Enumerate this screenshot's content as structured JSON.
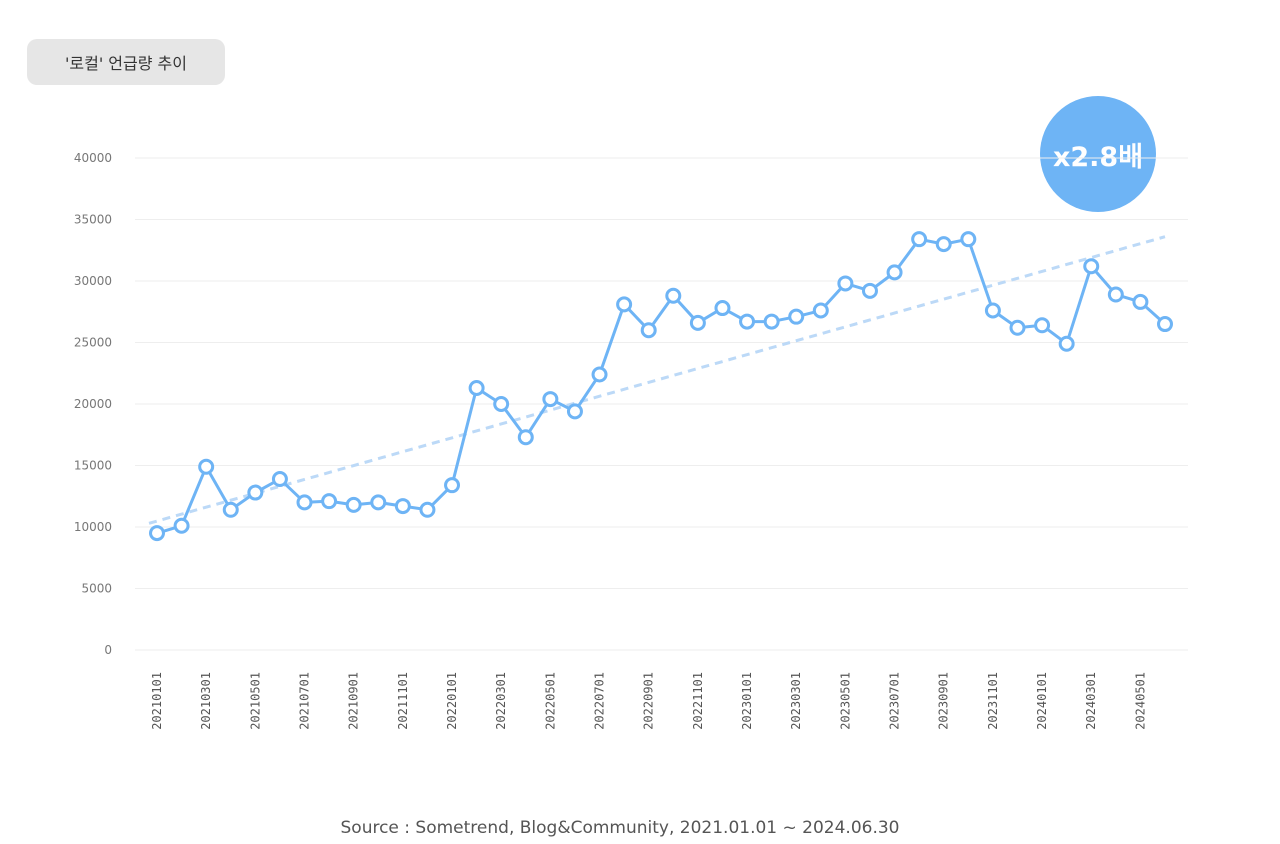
{
  "title": "'로컬' 언급량 추이",
  "multiplier": "x2.8배",
  "source": "Source : Sometrend, Blog&Community, 2021.01.01 ~ 2024.06.30",
  "colors": {
    "line": "#6eb4f5",
    "trend": "#bcd9f7",
    "grid": "#eeeeee",
    "badge": "#6eb4f5"
  },
  "chart_data": {
    "type": "line",
    "ylim": [
      0,
      40000
    ],
    "yticks": [
      0,
      5000,
      10000,
      15000,
      20000,
      25000,
      30000,
      35000,
      40000
    ],
    "x_tick_labels": [
      "20210101",
      "20210301",
      "20210501",
      "20210701",
      "20210901",
      "20211101",
      "20220101",
      "20220301",
      "20220501",
      "20220701",
      "20220901",
      "20221101",
      "20230101",
      "20230301",
      "20230501",
      "20230701",
      "20230901",
      "20231101",
      "20240101",
      "20240301",
      "20240501"
    ],
    "x": [
      "202101",
      "202102",
      "202103",
      "202104",
      "202105",
      "202106",
      "202107",
      "202108",
      "202109",
      "202110",
      "202111",
      "202112",
      "202201",
      "202202",
      "202203",
      "202204",
      "202205",
      "202206",
      "202207",
      "202208",
      "202209",
      "202210",
      "202211",
      "202212",
      "202301",
      "202302",
      "202303",
      "202304",
      "202305",
      "202306",
      "202307",
      "202308",
      "202309",
      "202310",
      "202311",
      "202312",
      "202401",
      "202402",
      "202403",
      "202404",
      "202405",
      "202406"
    ],
    "series": [
      {
        "values": [
          9500,
          10100,
          14900,
          11400,
          12800,
          13900,
          12000,
          12100,
          11800,
          12000,
          11700,
          11400,
          13400,
          21300,
          20000,
          17300,
          20400,
          19400,
          22400,
          28100,
          26000,
          28800,
          26600,
          27800,
          26700,
          26700,
          27100,
          27600,
          29800,
          29200,
          30700,
          33400,
          33000,
          33400,
          27600,
          26200,
          26400,
          24900,
          31200,
          28900,
          28300,
          26500
        ]
      }
    ],
    "trendline": {
      "start": 10300,
      "end": 33600
    },
    "grid": "horizontal"
  }
}
